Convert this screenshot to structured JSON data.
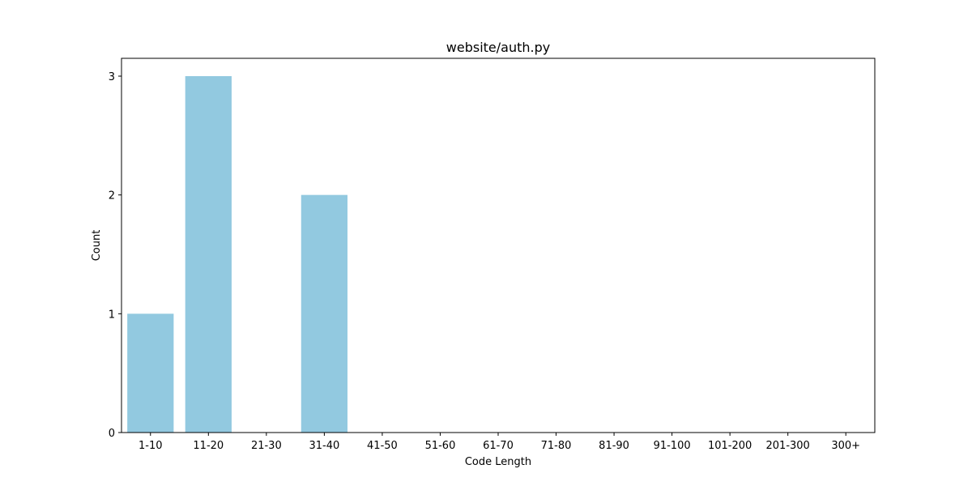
{
  "chart_data": {
    "type": "bar",
    "title": "website/auth.py",
    "xlabel": "Code Length",
    "ylabel": "Count",
    "categories": [
      "1-10",
      "11-20",
      "21-30",
      "31-40",
      "41-50",
      "51-60",
      "61-70",
      "71-80",
      "81-90",
      "91-100",
      "101-200",
      "201-300",
      "300+"
    ],
    "values": [
      1,
      3,
      0,
      2,
      0,
      0,
      0,
      0,
      0,
      0,
      0,
      0,
      0
    ],
    "ylim": [
      0,
      3.15
    ],
    "yticks": [
      0,
      1,
      2,
      3
    ],
    "grid": false,
    "bar_color": "#92C9E0"
  }
}
